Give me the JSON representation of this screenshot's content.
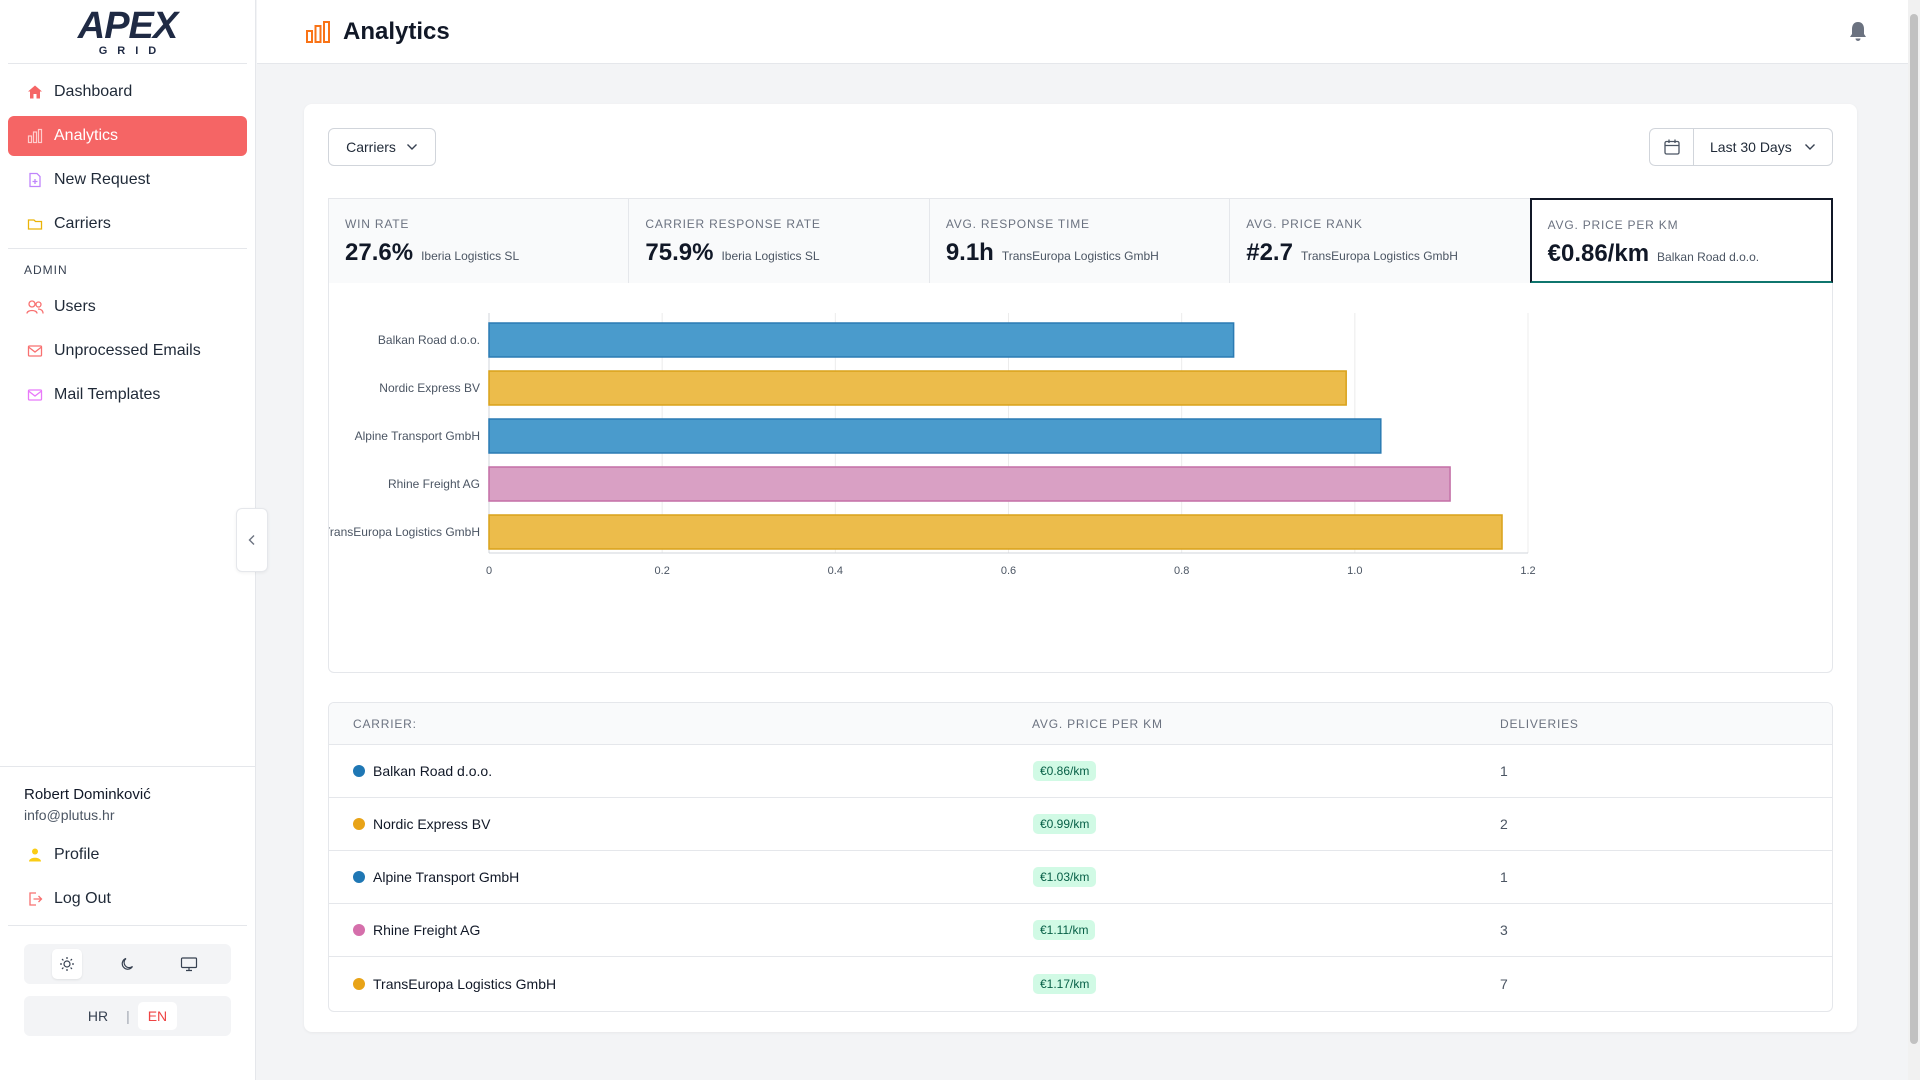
{
  "brand": {
    "logo_main": "APEX",
    "logo_sub": "GRID"
  },
  "sidebar": {
    "items": [
      {
        "label": "Dashboard",
        "icon": "home-icon"
      },
      {
        "label": "Analytics",
        "icon": "bar-chart-icon",
        "active": true
      },
      {
        "label": "New Request",
        "icon": "file-plus-icon"
      },
      {
        "label": "Carriers",
        "icon": "truck-icon"
      }
    ],
    "admin_heading": "ADMIN",
    "admin_items": [
      {
        "label": "Users",
        "icon": "users-icon"
      },
      {
        "label": "Unprocessed Emails",
        "icon": "mail-icon"
      },
      {
        "label": "Mail Templates",
        "icon": "mail-template-icon"
      }
    ],
    "user": {
      "name": "Robert Dominković",
      "email": "info@plutus.hr"
    },
    "profile_label": "Profile",
    "logout_label": "Log Out",
    "languages": {
      "hr": "HR",
      "en": "EN",
      "active": "EN"
    }
  },
  "header": {
    "title": "Analytics"
  },
  "filters": {
    "carriers_label": "Carriers",
    "date_label": "Last 30 Days"
  },
  "stats": [
    {
      "label": "WIN RATE",
      "value": "27.6%",
      "sub": "Iberia Logistics SL"
    },
    {
      "label": "CARRIER RESPONSE RATE",
      "value": "75.9%",
      "sub": "Iberia Logistics SL"
    },
    {
      "label": "AVG. RESPONSE TIME",
      "value": "9.1h",
      "sub": "TransEuropa Logistics GmbH"
    },
    {
      "label": "AVG. PRICE RANK",
      "value": "#2.7",
      "sub": "TransEuropa Logistics GmbH"
    },
    {
      "label": "AVG. PRICE PER KM",
      "value": "€0.86/km",
      "sub": "Balkan Road d.o.o.",
      "selected": true
    }
  ],
  "chart_data": {
    "type": "bar",
    "orientation": "horizontal",
    "categories": [
      "Balkan Road d.o.o.",
      "Nordic Express BV",
      "Alpine Transport GmbH",
      "Rhine Freight AG",
      "TransEuropa Logistics GmbH"
    ],
    "values": [
      0.86,
      0.99,
      1.03,
      1.11,
      1.17
    ],
    "colors": [
      "#4a9bcc",
      "#ecbc4b",
      "#4a9bcc",
      "#d9a0c4",
      "#ecbc4b"
    ],
    "strokes": [
      "#2b7bb3",
      "#d9a21a",
      "#2b7bb3",
      "#c46fa6",
      "#d9a21a"
    ],
    "xlim": [
      0,
      1.2
    ],
    "xticks": [
      "0",
      "0.2",
      "0.4",
      "0.6",
      "0.8",
      "1.0",
      "1.2"
    ],
    "grid": true
  },
  "table": {
    "headers": {
      "carrier": "CARRIER:",
      "price": "AVG. PRICE PER KM",
      "deliveries": "DELIVERIES"
    },
    "rows": [
      {
        "carrier": "Balkan Road d.o.o.",
        "price": "€0.86/km",
        "deliveries": "1",
        "color": "#1f77b4"
      },
      {
        "carrier": "Nordic Express BV",
        "price": "€0.99/km",
        "deliveries": "2",
        "color": "#e8a317"
      },
      {
        "carrier": "Alpine Transport GmbH",
        "price": "€1.03/km",
        "deliveries": "1",
        "color": "#1f77b4"
      },
      {
        "carrier": "Rhine Freight AG",
        "price": "€1.11/km",
        "deliveries": "3",
        "color": "#d56fab"
      },
      {
        "carrier": "TransEuropa Logistics GmbH",
        "price": "€1.17/km",
        "deliveries": "7",
        "color": "#e8a317"
      }
    ]
  },
  "colors": {
    "accent": "#f56565",
    "badge_bg": "#d1fae5",
    "badge_text": "#065f46"
  }
}
